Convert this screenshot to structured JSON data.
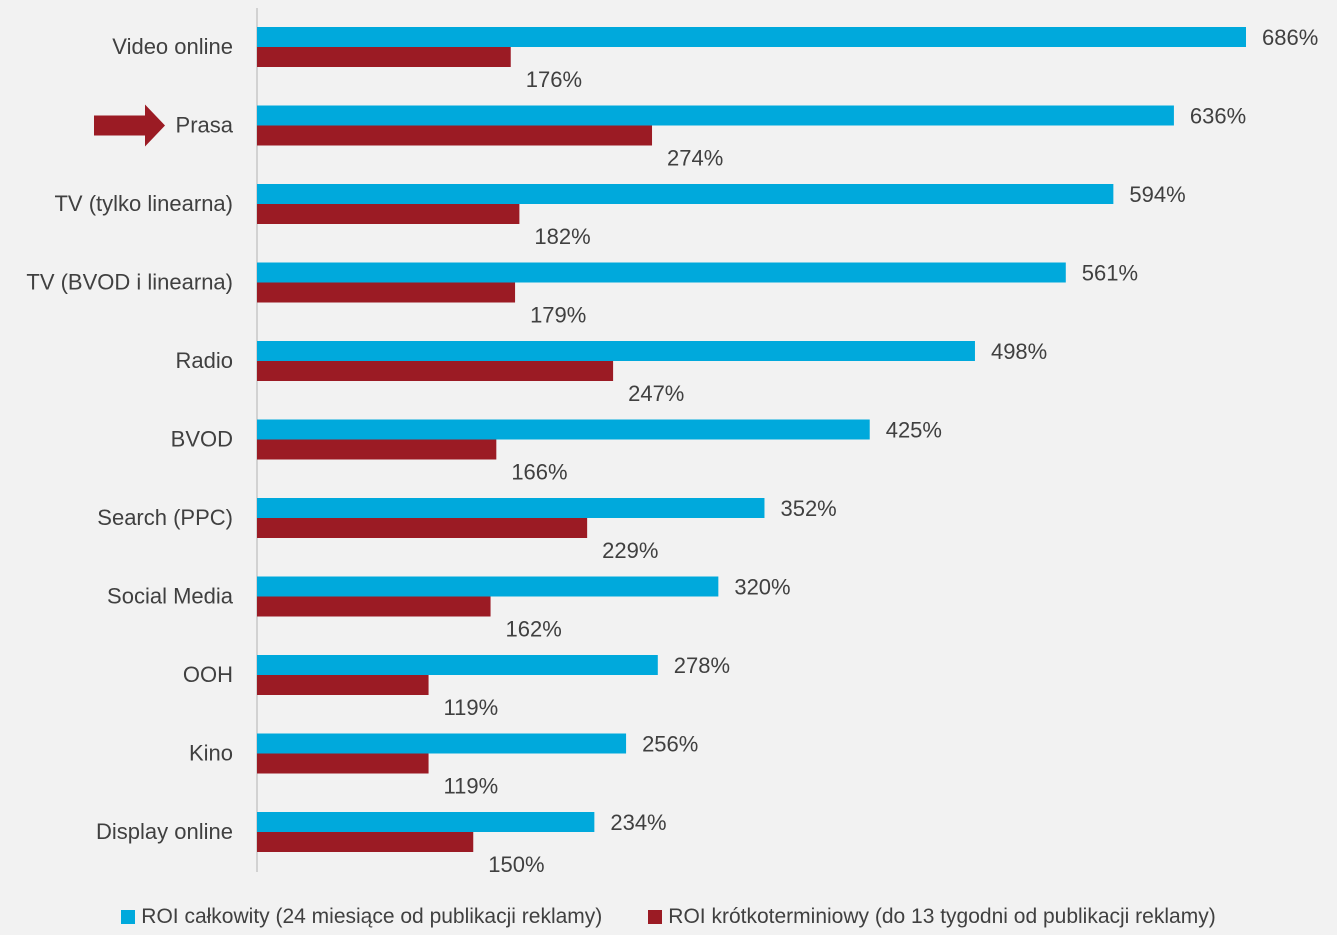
{
  "chart_data": {
    "type": "bar",
    "orientation": "horizontal",
    "categories": [
      "Video online",
      "Prasa",
      "TV (tylko linearna)",
      "TV (BVOD i linearna)",
      "Radio",
      "BVOD",
      "Search (PPC)",
      "Social Media",
      "OOH",
      "Kino",
      "Display online"
    ],
    "series": [
      {
        "name": "ROI całkowity (24 miesiące od publikacji reklamy)",
        "color": "#00a9dc",
        "values": [
          686,
          636,
          594,
          561,
          498,
          425,
          352,
          320,
          278,
          256,
          234
        ],
        "labels": [
          "686%",
          "636%",
          "594%",
          "561%",
          "498%",
          "425%",
          "352%",
          "320%",
          "278%",
          "256%",
          "234%"
        ]
      },
      {
        "name": "ROI krótkoterminiowy (do 13 tygodni od publikacji reklamy)",
        "color": "#9b1b24",
        "values": [
          176,
          274,
          182,
          179,
          247,
          166,
          229,
          162,
          119,
          119,
          150
        ],
        "labels": [
          "176%",
          "274%",
          "182%",
          "179%",
          "247%",
          "166%",
          "229%",
          "162%",
          "119%",
          "119%",
          "150%"
        ]
      }
    ],
    "value_unit": "%",
    "xlim": [
      0,
      700
    ],
    "grid": false,
    "legend_position": "bottom",
    "highlight": {
      "category": "Prasa",
      "marker": "arrow",
      "color": "#9b1b24"
    }
  },
  "legend": {
    "items": [
      {
        "label": "ROI całkowity (24 miesiące od publikacji reklamy)",
        "color": "#00a9dc"
      },
      {
        "label": "ROI krótkoterminiowy (do 13 tygodni od publikacji reklamy)",
        "color": "#9b1b24"
      }
    ]
  }
}
